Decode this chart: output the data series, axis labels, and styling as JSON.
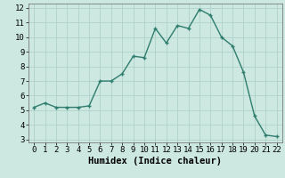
{
  "x": [
    0,
    1,
    2,
    3,
    4,
    5,
    6,
    7,
    8,
    9,
    10,
    11,
    12,
    13,
    14,
    15,
    16,
    17,
    18,
    19,
    20,
    21,
    22
  ],
  "y": [
    5.2,
    5.5,
    5.2,
    5.2,
    5.2,
    5.3,
    7.0,
    7.0,
    7.5,
    8.7,
    8.6,
    10.6,
    9.6,
    10.8,
    10.6,
    11.9,
    11.5,
    10.0,
    9.4,
    7.6,
    4.6,
    3.3,
    3.2
  ],
  "line_color": "#2e7d6e",
  "marker": "+",
  "bg_color": "#cce8e0",
  "grid_color": "#aacec6",
  "xlabel": "Humidex (Indice chaleur)",
  "xlim": [
    -0.5,
    22.5
  ],
  "ylim": [
    2.8,
    12.3
  ],
  "yticks": [
    3,
    4,
    5,
    6,
    7,
    8,
    9,
    10,
    11,
    12
  ],
  "xticks": [
    0,
    1,
    2,
    3,
    4,
    5,
    6,
    7,
    8,
    9,
    10,
    11,
    12,
    13,
    14,
    15,
    16,
    17,
    18,
    19,
    20,
    21,
    22
  ],
  "xlabel_fontsize": 7.5,
  "tick_fontsize": 6.5,
  "linewidth": 1.0,
  "markersize": 3.5,
  "markeredgewidth": 1.0
}
